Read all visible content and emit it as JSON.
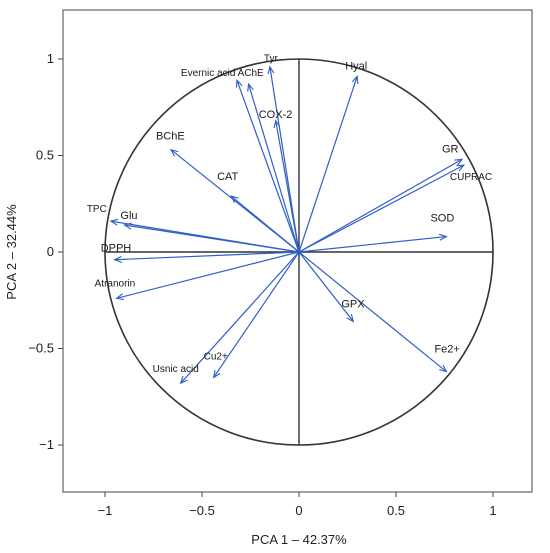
{
  "chart_data": {
    "type": "scatter",
    "subtype": "pca-correlation-circle",
    "title": "",
    "xlabel": "PCA 1 – 42.37%",
    "ylabel": "PCA 2 – 32.44%",
    "xlim": [
      -1.25,
      1.25
    ],
    "ylim": [
      -1.25,
      1.25
    ],
    "xticks": [
      -1,
      -0.5,
      0,
      0.5,
      1
    ],
    "yticks": [
      -1,
      -0.5,
      0,
      0.5,
      1
    ],
    "xtick_labels": [
      "−1",
      "−0.5",
      "0",
      "0.5",
      "1"
    ],
    "ytick_labels": [
      "−1",
      "−0.5",
      "0",
      "0.5",
      "1"
    ],
    "grid": false,
    "circle_radius": 1,
    "vector_color": "#2f5fc8",
    "circle_color": "#333333",
    "variables": [
      {
        "name": "Hyal",
        "x": 0.3,
        "y": 0.91
      },
      {
        "name": "Tyr",
        "x": -0.15,
        "y": 0.96
      },
      {
        "name": "Evernic acid AChE",
        "x": -0.32,
        "y": 0.89
      },
      {
        "name": "",
        "x": -0.26,
        "y": 0.87
      },
      {
        "name": "COX-2",
        "x": -0.12,
        "y": 0.68
      },
      {
        "name": "BChE",
        "x": -0.66,
        "y": 0.53
      },
      {
        "name": "CAT",
        "x": -0.35,
        "y": 0.29
      },
      {
        "name": "GR",
        "x": 0.84,
        "y": 0.48
      },
      {
        "name": "CUPRAC",
        "x": 0.85,
        "y": 0.45
      },
      {
        "name": "SOD",
        "x": 0.76,
        "y": 0.08
      },
      {
        "name": "TPC",
        "x": -0.97,
        "y": 0.16
      },
      {
        "name": "Glu",
        "x": -0.9,
        "y": 0.14
      },
      {
        "name": "DPPH",
        "x": -0.95,
        "y": -0.04
      },
      {
        "name": "Atranorin",
        "x": -0.94,
        "y": -0.24
      },
      {
        "name": "GPX",
        "x": 0.28,
        "y": -0.36
      },
      {
        "name": "Fe2+",
        "x": 0.76,
        "y": -0.62
      },
      {
        "name": "Cu2+",
        "x": -0.44,
        "y": -0.65
      },
      {
        "name": "Usnic acid",
        "x": -0.61,
        "y": -0.68
      }
    ]
  }
}
